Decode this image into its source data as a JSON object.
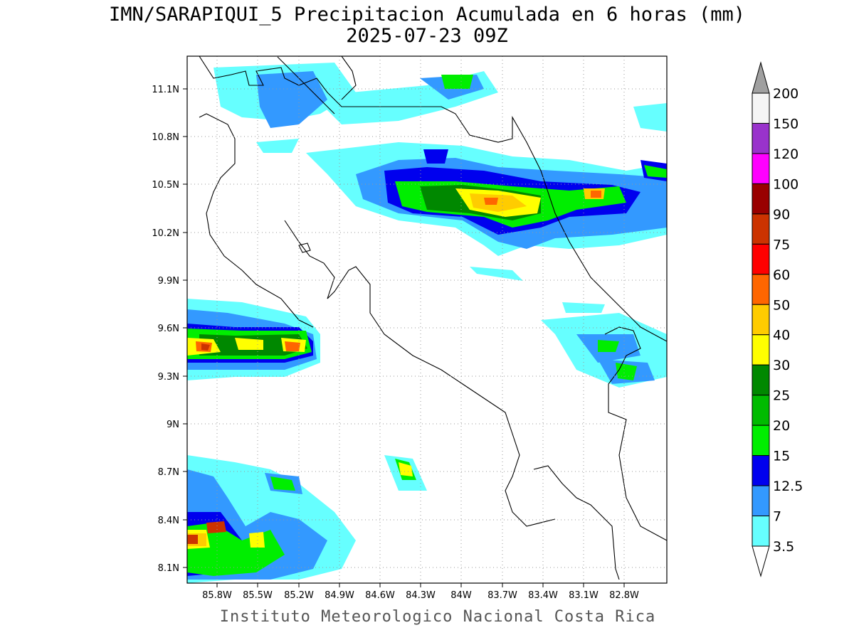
{
  "title": "IMN/SARAPIQUI_5 Precipitacion Acumulada en 6 horas (mm)",
  "subtitle": "2025-07-23 09Z",
  "credit": "Instituto Meteorologico Nacional Costa Rica",
  "map": {
    "lon_range": [
      -86.05,
      -82.5
    ],
    "lat_range": [
      8.0,
      11.3
    ],
    "lat_ticks": [
      "11.1N",
      "10.8N",
      "10.5N",
      "10.2N",
      "9.9N",
      "9.6N",
      "9.3N",
      "9N",
      "8.7N",
      "8.4N",
      "8.1N"
    ],
    "lon_ticks": [
      "85.8W",
      "85.5W",
      "85.2W",
      "84.9W",
      "84.6W",
      "84.3W",
      "84W",
      "83.7W",
      "83.4W",
      "83.1W",
      "82.8W"
    ],
    "grid": "dotted"
  },
  "colorbar": {
    "labels": [
      "200",
      "150",
      "120",
      "100",
      "90",
      "75",
      "60",
      "50",
      "40",
      "30",
      "25",
      "20",
      "15",
      "12.5",
      "7",
      "3.5"
    ],
    "colors": [
      "#f5f5f5",
      "#9933cc",
      "#ff00ff",
      "#990000",
      "#cc3300",
      "#ff0000",
      "#ff6600",
      "#ffcc00",
      "#ffff00",
      "#008800",
      "#00bb00",
      "#00ee00",
      "#0000ee",
      "#3399ff",
      "#66ffff"
    ],
    "over_color": "#a0a0a0"
  }
}
